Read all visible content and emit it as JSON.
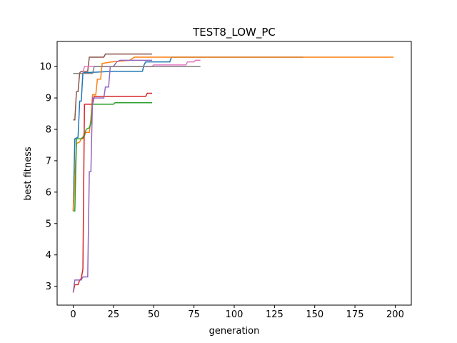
{
  "chart_data": {
    "type": "line",
    "title": "TEST8_LOW_PC",
    "xlabel": "generation",
    "ylabel": "best fitness",
    "xlim": [
      -10,
      210
    ],
    "ylim": [
      2.4,
      10.8
    ],
    "xticks": [
      0,
      25,
      50,
      75,
      100,
      125,
      150,
      175,
      200
    ],
    "yticks": [
      3,
      4,
      5,
      6,
      7,
      8,
      9,
      10
    ],
    "grid": false,
    "legend": "none",
    "series": [
      {
        "color": "#1f77b4",
        "points": [
          [
            0,
            5.4
          ],
          [
            1,
            7.7
          ],
          [
            3,
            7.75
          ],
          [
            4,
            8.9
          ],
          [
            5,
            8.9
          ],
          [
            6,
            9.8
          ],
          [
            25,
            9.85
          ],
          [
            43,
            9.85
          ],
          [
            44,
            10.05
          ],
          [
            45,
            10.15
          ],
          [
            60,
            10.15
          ],
          [
            61,
            10.3
          ],
          [
            143,
            10.3
          ]
        ]
      },
      {
        "color": "#ff7f0e",
        "points": [
          [
            0,
            5.4
          ],
          [
            2,
            7.55
          ],
          [
            4,
            7.6
          ],
          [
            5,
            7.7
          ],
          [
            6,
            7.7
          ],
          [
            7,
            7.9
          ],
          [
            10,
            7.9
          ],
          [
            11,
            8.35
          ],
          [
            12,
            9.1
          ],
          [
            14,
            9.1
          ],
          [
            15,
            9.6
          ],
          [
            17,
            9.6
          ],
          [
            18,
            10.1
          ],
          [
            24,
            10.15
          ],
          [
            35,
            10.2
          ],
          [
            38,
            10.3
          ],
          [
            199,
            10.3
          ]
        ]
      },
      {
        "color": "#2ca02c",
        "points": [
          [
            0,
            5.4
          ],
          [
            1,
            5.4
          ],
          [
            2,
            7.7
          ],
          [
            5,
            7.7
          ],
          [
            7,
            7.8
          ],
          [
            8,
            8.0
          ],
          [
            10,
            8.05
          ],
          [
            11,
            8.2
          ],
          [
            12,
            8.8
          ],
          [
            25,
            8.8
          ],
          [
            26,
            8.85
          ],
          [
            49,
            8.85
          ]
        ]
      },
      {
        "color": "#d62728",
        "points": [
          [
            0,
            2.8
          ],
          [
            1,
            3.05
          ],
          [
            3,
            3.05
          ],
          [
            4,
            3.2
          ],
          [
            5,
            3.25
          ],
          [
            6,
            3.55
          ],
          [
            7,
            8.8
          ],
          [
            12,
            8.8
          ],
          [
            13,
            9.05
          ],
          [
            45,
            9.05
          ],
          [
            46,
            9.15
          ],
          [
            49,
            9.15
          ]
        ]
      },
      {
        "color": "#9467bd",
        "points": [
          [
            0,
            2.8
          ],
          [
            1,
            3.2
          ],
          [
            5,
            3.2
          ],
          [
            6,
            3.3
          ],
          [
            9,
            3.3
          ],
          [
            10,
            6.65
          ],
          [
            11,
            6.65
          ],
          [
            12,
            9.0
          ],
          [
            19,
            9.0
          ],
          [
            20,
            9.35
          ],
          [
            22,
            9.35
          ],
          [
            23,
            10.0
          ],
          [
            25,
            10.0
          ],
          [
            27,
            10.15
          ],
          [
            29,
            10.2
          ],
          [
            49,
            10.2
          ]
        ]
      },
      {
        "color": "#8c564b",
        "points": [
          [
            0,
            8.3
          ],
          [
            1,
            8.3
          ],
          [
            2,
            9.2
          ],
          [
            3,
            9.2
          ],
          [
            4,
            9.8
          ],
          [
            5,
            9.85
          ],
          [
            9,
            9.85
          ],
          [
            10,
            10.3
          ],
          [
            19,
            10.3
          ],
          [
            20,
            10.4
          ],
          [
            49,
            10.4
          ]
        ]
      },
      {
        "color": "#e377c2",
        "points": [
          [
            6,
            9.8
          ],
          [
            7,
            10.0
          ],
          [
            49,
            10.0
          ],
          [
            50,
            10.05
          ],
          [
            70,
            10.05
          ],
          [
            71,
            10.15
          ],
          [
            75,
            10.15
          ],
          [
            76,
            10.2
          ],
          [
            79,
            10.2
          ]
        ]
      },
      {
        "color": "#7f7f7f",
        "points": [
          [
            0,
            9.78
          ],
          [
            12,
            9.78
          ],
          [
            13,
            10.0
          ],
          [
            79,
            10.0
          ]
        ]
      }
    ]
  }
}
